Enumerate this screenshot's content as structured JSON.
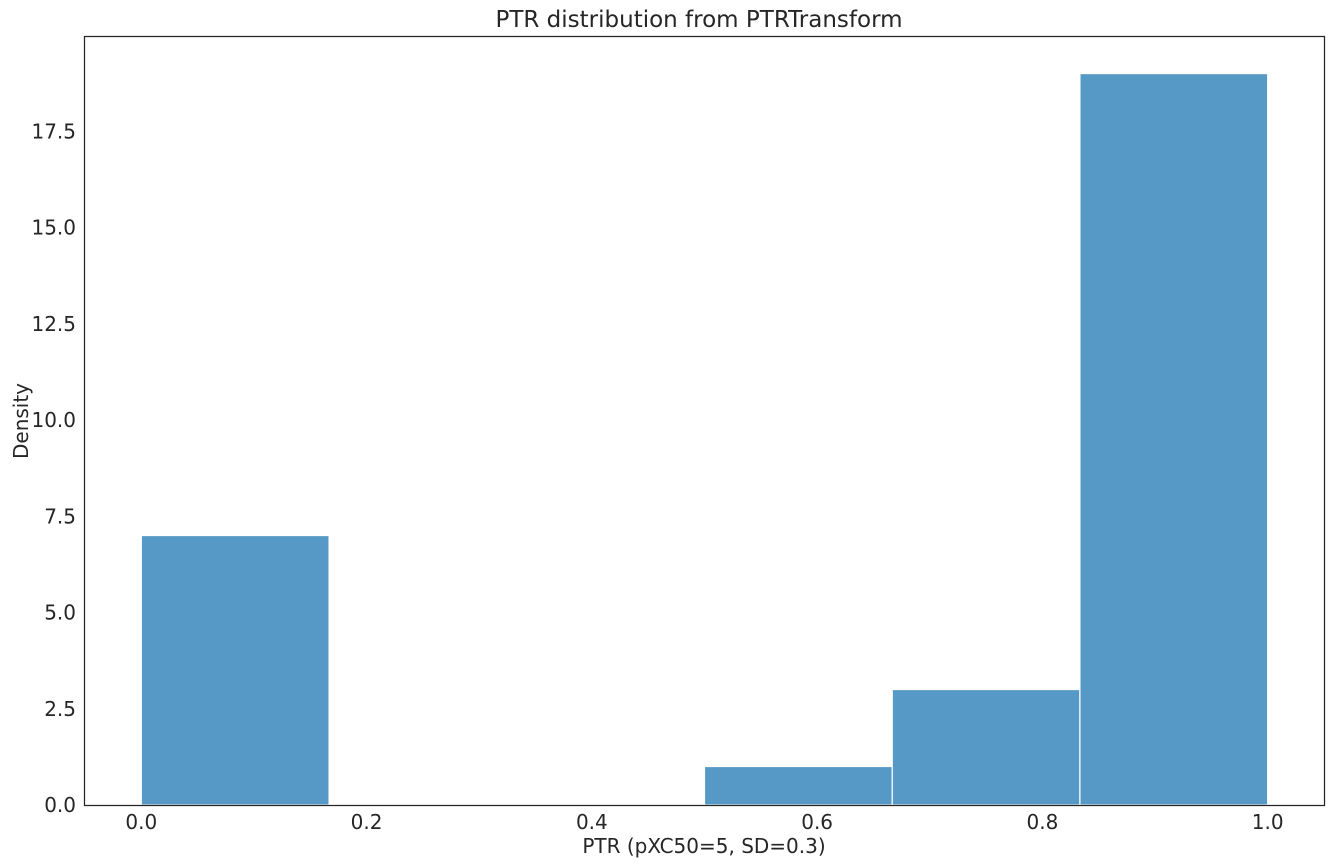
{
  "chart_data": {
    "type": "bar",
    "title": "PTR distribution from PTRTransform",
    "xlabel": "PTR (pXC50=5, SD=0.3)",
    "ylabel": "Density",
    "xlim": [
      -0.05,
      1.05
    ],
    "ylim": [
      0,
      19.95
    ],
    "x_ticks": [
      "0.0",
      "0.2",
      "0.4",
      "0.6",
      "0.8",
      "1.0"
    ],
    "y_ticks": [
      "0.0",
      "2.5",
      "5.0",
      "7.5",
      "10.0",
      "12.5",
      "15.0",
      "17.5"
    ],
    "bins": [
      {
        "x0": 0.0,
        "x1": 0.1667,
        "value": 7.0
      },
      {
        "x0": 0.1667,
        "x1": 0.3333,
        "value": 0
      },
      {
        "x0": 0.3333,
        "x1": 0.5,
        "value": 0
      },
      {
        "x0": 0.5,
        "x1": 0.6667,
        "value": 1.0
      },
      {
        "x0": 0.6667,
        "x1": 0.8333,
        "value": 3.0
      },
      {
        "x0": 0.8333,
        "x1": 1.0,
        "value": 19.0
      }
    ],
    "bar_color": "#5799c6",
    "grid": false,
    "legend": "none"
  }
}
